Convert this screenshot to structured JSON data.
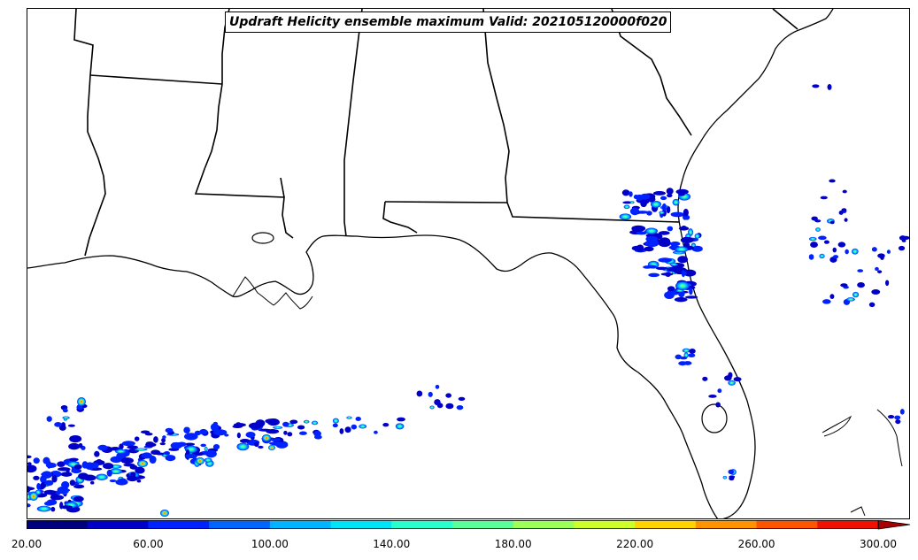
{
  "title": "Updraft Helicity ensemble maximum Valid: 202105120000f020",
  "colorbar": {
    "extend": "max",
    "ticks": [
      "20.00",
      "60.00",
      "100.00",
      "140.00",
      "180.00",
      "220.00",
      "260.00",
      "300.00"
    ],
    "tick_values": [
      20,
      60,
      100,
      140,
      180,
      220,
      260,
      300
    ],
    "levels": [
      20,
      40,
      60,
      80,
      100,
      120,
      140,
      160,
      180,
      200,
      220,
      240,
      260,
      280,
      300
    ],
    "colors": [
      "#00007f",
      "#0000c8",
      "#0022ff",
      "#0066ff",
      "#00b4ff",
      "#00e4f8",
      "#29ffcd",
      "#5aff9c",
      "#9cff5a",
      "#cdff29",
      "#ffd400",
      "#ff9400",
      "#ff5500",
      "#f01000",
      "#a80000"
    ]
  }
}
